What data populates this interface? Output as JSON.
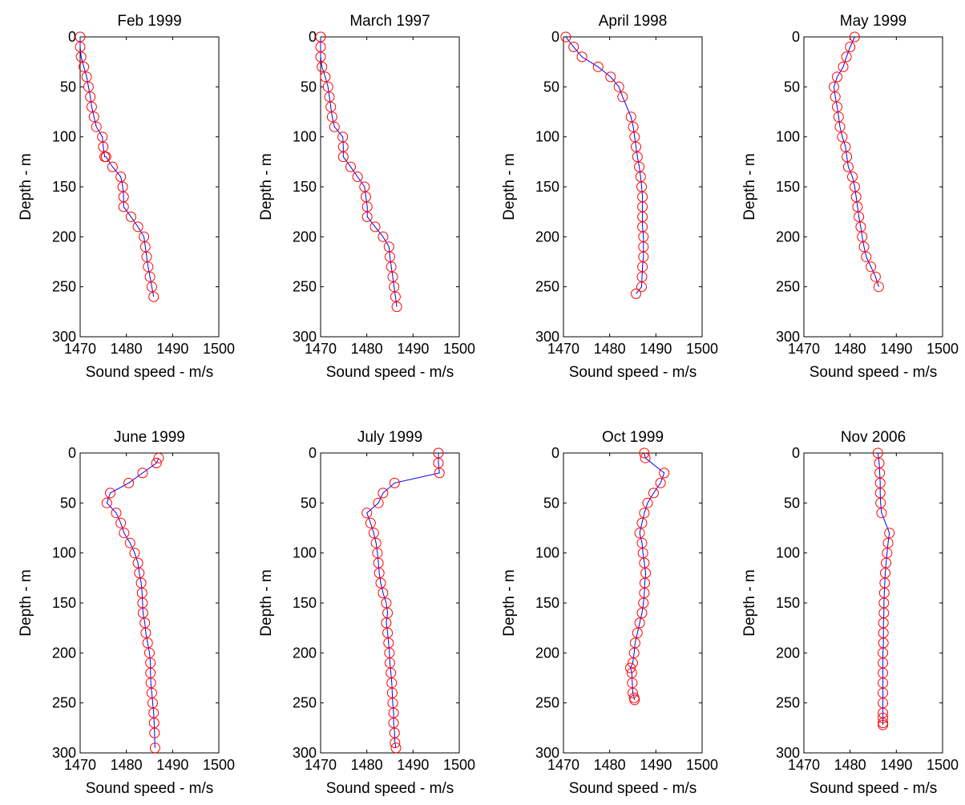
{
  "figure": {
    "xlabel": "Sound speed - m/s",
    "ylabel": "Depth - m",
    "colors": {
      "line": "#0000ff",
      "marker": "#ff0000",
      "axes": "#000000",
      "background": "#ffffff"
    }
  },
  "chart_data": [
    {
      "type": "line",
      "title": "Feb 1999",
      "xlabel": "Sound speed - m/s",
      "ylabel": "Depth - m",
      "xlim": [
        1470,
        1500
      ],
      "ylim": [
        0,
        300
      ],
      "y_reversed": true,
      "xticks": [
        1470,
        1480,
        1490,
        1500
      ],
      "yticks": [
        0,
        50,
        100,
        150,
        200,
        250,
        300
      ],
      "grid": false,
      "marker": "circle",
      "series": [
        {
          "x": [
            1470.0,
            1470.0,
            1470.2,
            1470.8,
            1471.4,
            1471.8,
            1472.2,
            1472.5,
            1473.0,
            1473.5,
            1474.8,
            1475.0,
            1475.3,
            1475.6,
            1477.0,
            1478.8,
            1479.2,
            1479.4,
            1479.4,
            1481.0,
            1482.5,
            1483.8,
            1484.1,
            1484.4,
            1484.7,
            1485.1,
            1485.5,
            1485.9
          ],
          "y": [
            0,
            10,
            20,
            30,
            40,
            50,
            60,
            70,
            80,
            90,
            100,
            110,
            120,
            120,
            130,
            140,
            150,
            160,
            170,
            180,
            190,
            200,
            210,
            220,
            230,
            240,
            250,
            260
          ]
        }
      ]
    },
    {
      "type": "line",
      "title": "March 1997",
      "xlabel": "Sound speed - m/s",
      "ylabel": "Depth - m",
      "xlim": [
        1470,
        1500
      ],
      "ylim": [
        0,
        300
      ],
      "y_reversed": true,
      "xticks": [
        1470,
        1480,
        1490,
        1500
      ],
      "yticks": [
        0,
        50,
        100,
        150,
        200,
        250,
        300
      ],
      "grid": false,
      "marker": "circle",
      "series": [
        {
          "x": [
            1470.0,
            1470.0,
            1470.0,
            1470.3,
            1471.0,
            1471.6,
            1471.9,
            1472.2,
            1472.5,
            1473.0,
            1474.8,
            1474.9,
            1474.9,
            1476.5,
            1478.0,
            1479.5,
            1479.8,
            1480.1,
            1480.1,
            1481.8,
            1483.5,
            1484.8,
            1485.0,
            1485.3,
            1485.6,
            1485.9,
            1486.2,
            1486.5
          ],
          "y": [
            0,
            10,
            20,
            30,
            40,
            50,
            60,
            70,
            80,
            90,
            100,
            110,
            120,
            130,
            140,
            150,
            160,
            170,
            180,
            190,
            200,
            210,
            220,
            230,
            240,
            250,
            260,
            270
          ]
        }
      ]
    },
    {
      "type": "line",
      "title": "April 1998",
      "xlabel": "Sound speed - m/s",
      "ylabel": "Depth - m",
      "xlim": [
        1470,
        1500
      ],
      "ylim": [
        0,
        300
      ],
      "y_reversed": true,
      "xticks": [
        1470,
        1480,
        1490,
        1500
      ],
      "yticks": [
        0,
        50,
        100,
        150,
        200,
        250,
        300
      ],
      "grid": false,
      "marker": "circle",
      "series": [
        {
          "x": [
            1470.5,
            1472.2,
            1474.0,
            1477.5,
            1480.2,
            1482.0,
            1482.8,
            1484.6,
            1485.1,
            1485.4,
            1485.7,
            1486.0,
            1486.4,
            1486.7,
            1486.9,
            1487.1,
            1487.1,
            1487.1,
            1487.1,
            1487.3,
            1487.3,
            1487.3,
            1487.1,
            1487.0,
            1486.9,
            1485.7
          ],
          "y": [
            0,
            10,
            20,
            30,
            40,
            50,
            60,
            80,
            90,
            100,
            110,
            120,
            130,
            140,
            150,
            160,
            170,
            180,
            190,
            200,
            210,
            220,
            230,
            240,
            250,
            257
          ]
        }
      ]
    },
    {
      "type": "line",
      "title": "May 1999",
      "xlabel": "Sound speed - m/s",
      "ylabel": "Depth - m",
      "xlim": [
        1470,
        1500
      ],
      "ylim": [
        0,
        300
      ],
      "y_reversed": true,
      "xticks": [
        1470,
        1480,
        1490,
        1500
      ],
      "yticks": [
        0,
        50,
        100,
        150,
        200,
        250,
        300
      ],
      "grid": false,
      "marker": "circle",
      "series": [
        {
          "x": [
            1481.0,
            1480.0,
            1479.2,
            1478.5,
            1477.2,
            1476.5,
            1476.8,
            1477.2,
            1477.5,
            1477.8,
            1478.3,
            1479.0,
            1479.3,
            1479.6,
            1480.5,
            1481.0,
            1481.3,
            1481.6,
            1481.9,
            1482.3,
            1482.6,
            1483.0,
            1483.5,
            1484.5,
            1485.5,
            1486.2
          ],
          "y": [
            0,
            10,
            20,
            30,
            40,
            50,
            60,
            70,
            80,
            90,
            100,
            110,
            120,
            130,
            140,
            150,
            160,
            170,
            180,
            190,
            200,
            210,
            220,
            230,
            240,
            250
          ]
        }
      ]
    },
    {
      "type": "line",
      "title": "June 1999",
      "xlabel": "Sound speed - m/s",
      "ylabel": "Depth - m",
      "xlim": [
        1470,
        1500
      ],
      "ylim": [
        0,
        300
      ],
      "y_reversed": true,
      "xticks": [
        1470,
        1480,
        1490,
        1500
      ],
      "yticks": [
        0,
        50,
        100,
        150,
        200,
        250,
        300
      ],
      "grid": false,
      "marker": "circle",
      "series": [
        {
          "x": [
            1487.0,
            1486.5,
            1483.5,
            1480.5,
            1476.5,
            1475.8,
            1477.8,
            1478.8,
            1479.5,
            1480.8,
            1481.8,
            1482.5,
            1482.8,
            1483.2,
            1483.4,
            1483.5,
            1483.6,
            1484.0,
            1484.2,
            1484.6,
            1485.0,
            1485.2,
            1485.2,
            1485.3,
            1485.5,
            1485.7,
            1485.9,
            1486.0,
            1486.1,
            1486.2
          ],
          "y": [
            5,
            10,
            20,
            30,
            40,
            50,
            60,
            70,
            80,
            90,
            100,
            110,
            120,
            130,
            140,
            150,
            160,
            170,
            180,
            190,
            200,
            210,
            220,
            230,
            240,
            250,
            260,
            270,
            280,
            295
          ]
        }
      ]
    },
    {
      "type": "line",
      "title": "July 1999",
      "xlabel": "Sound speed - m/s",
      "ylabel": "Depth - m",
      "xlim": [
        1470,
        1500
      ],
      "ylim": [
        0,
        300
      ],
      "y_reversed": true,
      "xticks": [
        1470,
        1480,
        1490,
        1500
      ],
      "yticks": [
        0,
        50,
        100,
        150,
        200,
        250,
        300
      ],
      "grid": false,
      "marker": "circle",
      "series": [
        {
          "x": [
            1495.5,
            1495.5,
            1495.7,
            1486.0,
            1483.5,
            1482.5,
            1480.0,
            1480.8,
            1481.5,
            1482.0,
            1482.3,
            1482.5,
            1482.7,
            1483.0,
            1483.5,
            1484.2,
            1484.5,
            1484.2,
            1484.5,
            1484.7,
            1484.9,
            1485.0,
            1485.2,
            1485.4,
            1485.5,
            1485.6,
            1485.8,
            1485.8,
            1486.0,
            1486.1,
            1486.3
          ],
          "y": [
            0,
            10,
            20,
            30,
            40,
            50,
            60,
            70,
            80,
            90,
            100,
            110,
            120,
            130,
            140,
            150,
            160,
            170,
            180,
            190,
            200,
            210,
            220,
            230,
            240,
            250,
            260,
            270,
            280,
            290,
            295
          ]
        }
      ]
    },
    {
      "type": "line",
      "title": "Oct 1999",
      "xlabel": "Sound speed - m/s",
      "ylabel": "Depth - m",
      "xlim": [
        1470,
        1500
      ],
      "ylim": [
        0,
        300
      ],
      "y_reversed": true,
      "xticks": [
        1470,
        1480,
        1490,
        1500
      ],
      "yticks": [
        0,
        50,
        100,
        150,
        200,
        250,
        300
      ],
      "grid": false,
      "marker": "circle",
      "series": [
        {
          "x": [
            1487.5,
            1487.7,
            1491.8,
            1491.0,
            1489.5,
            1488.2,
            1487.5,
            1487.0,
            1486.5,
            1487.0,
            1487.2,
            1487.5,
            1487.8,
            1487.6,
            1487.5,
            1487.3,
            1487.0,
            1486.5,
            1486.0,
            1485.5,
            1485.3,
            1485.0,
            1484.5,
            1484.8,
            1484.9,
            1485.0,
            1485.3,
            1485.4
          ],
          "y": [
            0,
            5,
            20,
            30,
            40,
            50,
            60,
            70,
            80,
            90,
            100,
            110,
            120,
            130,
            140,
            150,
            160,
            170,
            180,
            190,
            200,
            210,
            215,
            220,
            230,
            240,
            245,
            247
          ]
        }
      ]
    },
    {
      "type": "line",
      "title": "Nov 2006",
      "xlabel": "Sound speed - m/s",
      "ylabel": "Depth - m",
      "xlim": [
        1470,
        1500
      ],
      "ylim": [
        0,
        300
      ],
      "y_reversed": true,
      "xticks": [
        1470,
        1480,
        1490,
        1500
      ],
      "yticks": [
        0,
        50,
        100,
        150,
        200,
        250,
        300
      ],
      "grid": false,
      "marker": "circle",
      "series": [
        {
          "x": [
            1486.0,
            1486.3,
            1486.4,
            1486.5,
            1486.5,
            1486.6,
            1486.8,
            1488.5,
            1488.2,
            1488.0,
            1487.8,
            1487.6,
            1487.5,
            1487.4,
            1487.3,
            1487.3,
            1487.2,
            1487.2,
            1487.2,
            1487.1,
            1487.1,
            1487.1,
            1487.1,
            1487.1,
            1487.1,
            1487.1,
            1487.1,
            1487.1,
            1487.1
          ],
          "y": [
            0,
            10,
            20,
            30,
            40,
            50,
            60,
            80,
            90,
            100,
            110,
            120,
            130,
            140,
            150,
            160,
            170,
            180,
            190,
            200,
            210,
            220,
            230,
            240,
            250,
            260,
            265,
            270,
            272
          ]
        }
      ]
    }
  ]
}
